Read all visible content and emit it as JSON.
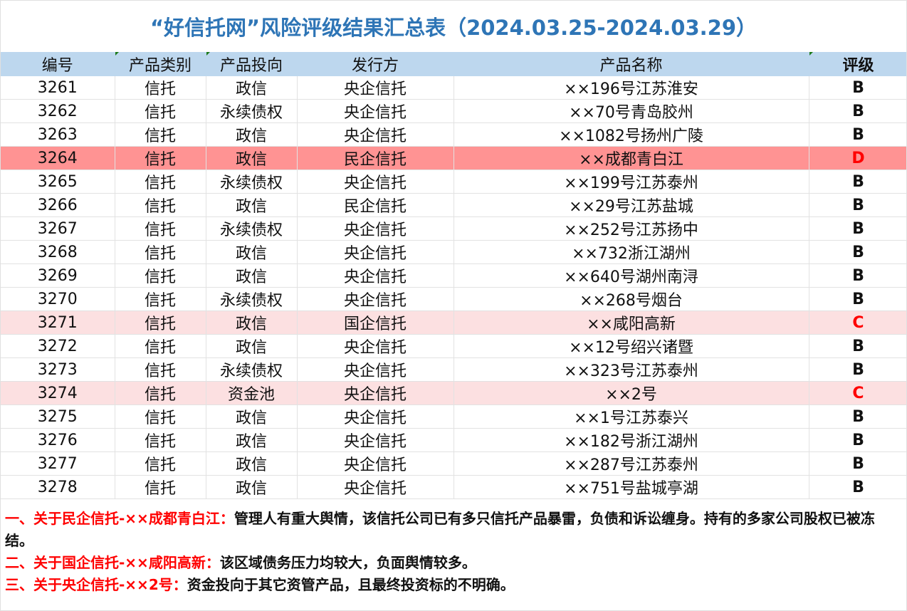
{
  "title": "“好信托网”风险评级结果汇总表（2024.03.25-2024.03.29）",
  "columns": [
    "编号",
    "产品类别",
    "产品投向",
    "发行方",
    "产品名称",
    "评级"
  ],
  "rows": [
    {
      "id": "3261",
      "category": "信托",
      "direction": "政信",
      "issuer": "央企信托",
      "name": "××196号江苏淮安",
      "rating": "B"
    },
    {
      "id": "3262",
      "category": "信托",
      "direction": "永续债权",
      "issuer": "央企信托",
      "name": "××70号青岛胶州",
      "rating": "B"
    },
    {
      "id": "3263",
      "category": "信托",
      "direction": "政信",
      "issuer": "央企信托",
      "name": "××1082号扬州广陵",
      "rating": "B"
    },
    {
      "id": "3264",
      "category": "信托",
      "direction": "政信",
      "issuer": "民企信托",
      "name": "××成都青白江",
      "rating": "D"
    },
    {
      "id": "3265",
      "category": "信托",
      "direction": "永续债权",
      "issuer": "央企信托",
      "name": "××199号江苏泰州",
      "rating": "B"
    },
    {
      "id": "3266",
      "category": "信托",
      "direction": "政信",
      "issuer": "民企信托",
      "name": "××29号江苏盐城",
      "rating": "B"
    },
    {
      "id": "3267",
      "category": "信托",
      "direction": "永续债权",
      "issuer": "央企信托",
      "name": "××252号江苏扬中",
      "rating": "B"
    },
    {
      "id": "3268",
      "category": "信托",
      "direction": "政信",
      "issuer": "央企信托",
      "name": "××732浙江湖州",
      "rating": "B"
    },
    {
      "id": "3269",
      "category": "信托",
      "direction": "政信",
      "issuer": "央企信托",
      "name": "××640号湖州南浔",
      "rating": "B"
    },
    {
      "id": "3270",
      "category": "信托",
      "direction": "永续债权",
      "issuer": "央企信托",
      "name": "××268号烟台",
      "rating": "B"
    },
    {
      "id": "3271",
      "category": "信托",
      "direction": "政信",
      "issuer": "国企信托",
      "name": "××咸阳高新",
      "rating": "C"
    },
    {
      "id": "3272",
      "category": "信托",
      "direction": "政信",
      "issuer": "央企信托",
      "name": "××12号绍兴诸暨",
      "rating": "B"
    },
    {
      "id": "3273",
      "category": "信托",
      "direction": "永续债权",
      "issuer": "央企信托",
      "name": "××323号江苏泰州",
      "rating": "B"
    },
    {
      "id": "3274",
      "category": "信托",
      "direction": "资金池",
      "issuer": "央企信托",
      "name": "××2号",
      "rating": "C"
    },
    {
      "id": "3275",
      "category": "信托",
      "direction": "政信",
      "issuer": "央企信托",
      "name": "××1号江苏泰兴",
      "rating": "B"
    },
    {
      "id": "3276",
      "category": "信托",
      "direction": "政信",
      "issuer": "央企信托",
      "name": "××182号浙江湖州",
      "rating": "B"
    },
    {
      "id": "3277",
      "category": "信托",
      "direction": "政信",
      "issuer": "央企信托",
      "name": "××287号江苏泰州",
      "rating": "B"
    },
    {
      "id": "3278",
      "category": "信托",
      "direction": "政信",
      "issuer": "央企信托",
      "name": "××751号盐城亭湖",
      "rating": "B"
    }
  ],
  "notes": [
    {
      "label": "一、关于民企信托-××成都青白江：",
      "text": "管理人有重大舆情，该信托公司已有多只信托产品暴雷，负债和诉讼缠身。持有的多家公司股权已被冻结。"
    },
    {
      "label": "二、关于国企信托-××咸阳高新：",
      "text": "该区域债务压力均较大，负面舆情较多。"
    },
    {
      "label": "三、关于央企信托-××2号：",
      "text": "资金投向于其它资管产品，且最终投资标的不明确。"
    }
  ],
  "colors": {
    "title": "#2E75B6",
    "header_bg": "#BDD7EE",
    "rating_d_row": "#FF9393",
    "rating_c_row": "#FCE0E1",
    "alert_text": "#FF0000"
  }
}
